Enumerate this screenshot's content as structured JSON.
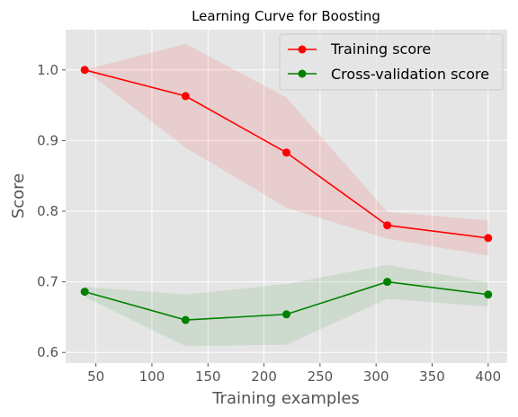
{
  "chart_data": {
    "type": "line",
    "title": "Learning Curve for Boosting",
    "xlabel": "Training examples",
    "ylabel": "Score",
    "xlim": [
      23,
      417
    ],
    "ylim": [
      0.585,
      1.057
    ],
    "xticks": [
      50,
      100,
      150,
      200,
      250,
      300,
      350,
      400
    ],
    "yticks": [
      0.6,
      0.7,
      0.8,
      0.9,
      1.0
    ],
    "ytick_labels": [
      "0.6",
      "0.7",
      "0.8",
      "0.9",
      "1.0"
    ],
    "grid": true,
    "legend_position": "top-right",
    "x": [
      40,
      130,
      220,
      310,
      400
    ],
    "series": [
      {
        "name": "Training score",
        "color": "#ff0000",
        "values": [
          1.0,
          0.963,
          0.883,
          0.78,
          0.762
        ],
        "band_lower": [
          1.0,
          0.89,
          0.805,
          0.761,
          0.737
        ],
        "band_upper": [
          1.0,
          1.037,
          0.961,
          0.799,
          0.787
        ]
      },
      {
        "name": "Cross-validation score",
        "color": "#008000",
        "values": [
          0.686,
          0.646,
          0.654,
          0.7,
          0.682
        ],
        "band_lower": [
          0.679,
          0.609,
          0.611,
          0.676,
          0.665
        ],
        "band_upper": [
          0.693,
          0.682,
          0.697,
          0.724,
          0.699
        ]
      }
    ]
  }
}
